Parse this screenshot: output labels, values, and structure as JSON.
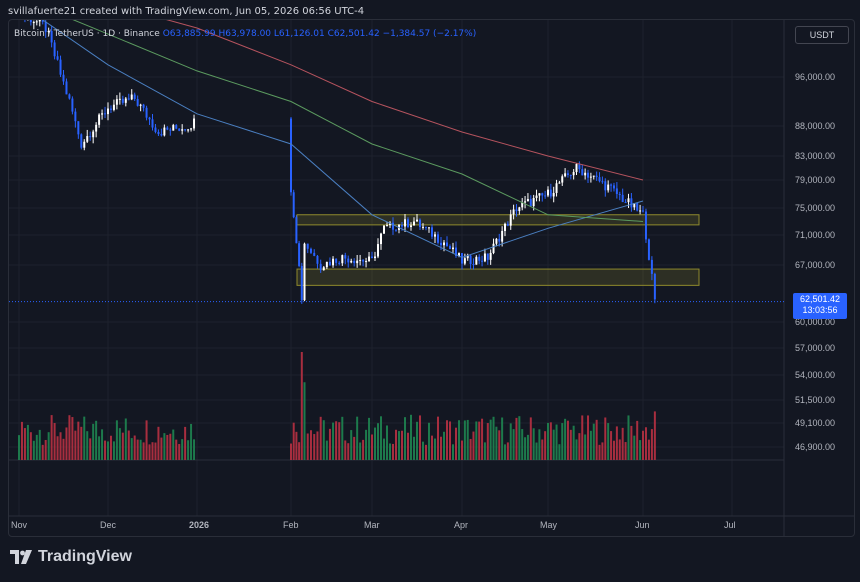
{
  "header": {
    "attribution": "svillafuerte21 created with TradingView.com, Jun 05, 2026 06:56 UTC-4"
  },
  "legend": {
    "symbol": "Bitcoin / TetherUS · 1D · Binance",
    "open": "O63,885.99",
    "high": "H63,978.00",
    "low": "L61,126.01",
    "close": "C62,501.42",
    "change": "−1,384.57 (−2.17%)"
  },
  "currency_label": "USDT",
  "last_price": {
    "value": "62,501.42",
    "countdown": "13:03:56"
  },
  "brand": {
    "name": "TradingView"
  },
  "colors": {
    "background": "#131722",
    "bull": "#ffffff",
    "bear": "#2962ff",
    "vol_bull": "#1d7a4c",
    "vol_bear": "#a82e3f",
    "ma_fast": "#4a7fc1",
    "ma_mid": "#5b9a5f",
    "ma_slow": "#b5535e",
    "zone": "#8f8a2c"
  },
  "chart_data": {
    "type": "candlestick",
    "x_ticks": [
      "Nov",
      "Dec",
      "2026",
      "Feb",
      "Mar",
      "Apr",
      "May",
      "Jun",
      "Jul"
    ],
    "y_ticks": [
      "96,000.00",
      "88,000.00",
      "83,000.00",
      "79,000.00",
      "75,000.00",
      "71,000.00",
      "67,000.00",
      "60,000.00",
      "57,000.00",
      "54,000.00",
      "51,500.00",
      "49,100.00",
      "46,900.00"
    ],
    "y_tick_values": [
      96000,
      88000,
      83000,
      79000,
      75000,
      71000,
      67000,
      60000,
      57000,
      54000,
      51500,
      49100,
      46900
    ],
    "price_path": [
      [
        "Nov",
        107000
      ],
      [
        "Nov 10",
        104000
      ],
      [
        "Nov 18",
        92000
      ],
      [
        "Nov 22",
        85000
      ],
      [
        "Dec",
        91000
      ],
      [
        "Dec 10",
        92500
      ],
      [
        "Dec 18",
        87000
      ],
      [
        "Dec 28",
        88000
      ],
      [
        "2026",
        89000
      ],
      [
        "Jan 10",
        94000
      ],
      [
        "Jan 14",
        97000
      ],
      [
        "Jan 22",
        90000
      ],
      [
        "Jan 28",
        87000
      ],
      [
        "Feb",
        78000
      ],
      [
        "Feb 5",
        63000
      ],
      [
        "Feb 6",
        70000
      ],
      [
        "Feb 12",
        67000
      ],
      [
        "Feb 20",
        68000
      ],
      [
        "Mar",
        67500
      ],
      [
        "Mar 5",
        72000
      ],
      [
        "Mar 15",
        73000
      ],
      [
        "Mar 25",
        70000
      ],
      [
        "Apr",
        67500
      ],
      [
        "Apr 10",
        68000
      ],
      [
        "Apr 20",
        75000
      ],
      [
        "May",
        77000
      ],
      [
        "May 10",
        81000
      ],
      [
        "May 20",
        78000
      ],
      [
        "Jun",
        74000
      ],
      [
        "Jun 5",
        62500
      ]
    ],
    "moving_averages": [
      {
        "path": [
          [
            "Nov",
            108000
          ],
          [
            "Dec",
            98000
          ],
          [
            "2026",
            90000
          ],
          [
            "Feb",
            85000
          ],
          [
            "Mar",
            74000
          ],
          [
            "Apr",
            68000
          ],
          [
            "May",
            72000
          ],
          [
            "Jun",
            76000
          ]
        ]
      },
      {
        "path": [
          [
            "Nov",
            109000
          ],
          [
            "Dec",
            103000
          ],
          [
            "2026",
            97000
          ],
          [
            "Feb",
            92000
          ],
          [
            "Mar",
            85000
          ],
          [
            "Apr",
            80000
          ],
          [
            "May",
            74000
          ],
          [
            "Jun",
            73000
          ]
        ]
      },
      {
        "path": [
          [
            "Nov",
            112000
          ],
          [
            "Dec",
            108000
          ],
          [
            "2026",
            104000
          ],
          [
            "Feb",
            98000
          ],
          [
            "Mar",
            92000
          ],
          [
            "Apr",
            87000
          ],
          [
            "May",
            83000
          ],
          [
            "Jun",
            79000
          ]
        ]
      }
    ],
    "zones": [
      {
        "from": 72500,
        "to": 74000
      },
      {
        "from": 64500,
        "to": 66500
      }
    ],
    "volume_spikes": [
      [
        "Feb 5",
        1.0
      ],
      [
        "Feb 6",
        0.72
      ],
      [
        "Jun 5",
        0.45
      ]
    ],
    "last_close": 62501.42
  }
}
